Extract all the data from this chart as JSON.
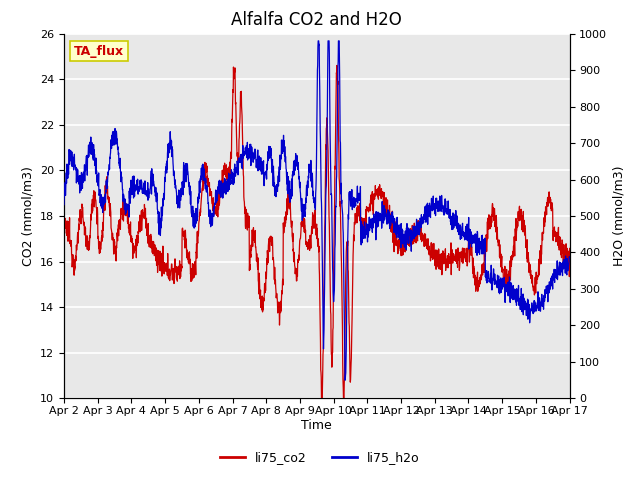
{
  "title": "Alfalfa CO2 and H2O",
  "xlabel": "Time",
  "ylabel_left": "CO2 (mmol/m3)",
  "ylabel_right": "H2O (mmol/m3)",
  "xlim": [
    0,
    15
  ],
  "ylim_left": [
    10,
    26
  ],
  "ylim_right": [
    0,
    1000
  ],
  "xtick_labels": [
    "Apr 2",
    "Apr 3",
    "Apr 4",
    "Apr 5",
    "Apr 6",
    "Apr 7",
    "Apr 8",
    "Apr 9",
    "Apr 10",
    "Apr 11",
    "Apr 12",
    "Apr 13",
    "Apr 14",
    "Apr 15",
    "Apr 16",
    "Apr 17"
  ],
  "yticks_left": [
    10,
    12,
    14,
    16,
    18,
    20,
    22,
    24,
    26
  ],
  "yticks_right": [
    0,
    100,
    200,
    300,
    400,
    500,
    600,
    700,
    800,
    900,
    1000
  ],
  "color_co2": "#cc0000",
  "color_h2o": "#0000cc",
  "legend_label_co2": "li75_co2",
  "legend_label_h2o": "li75_h2o",
  "annotation_text": "TA_flux",
  "bg_color": "#e8e8e8",
  "grid_color": "white",
  "title_fontsize": 12,
  "axis_fontsize": 9,
  "tick_fontsize": 8
}
